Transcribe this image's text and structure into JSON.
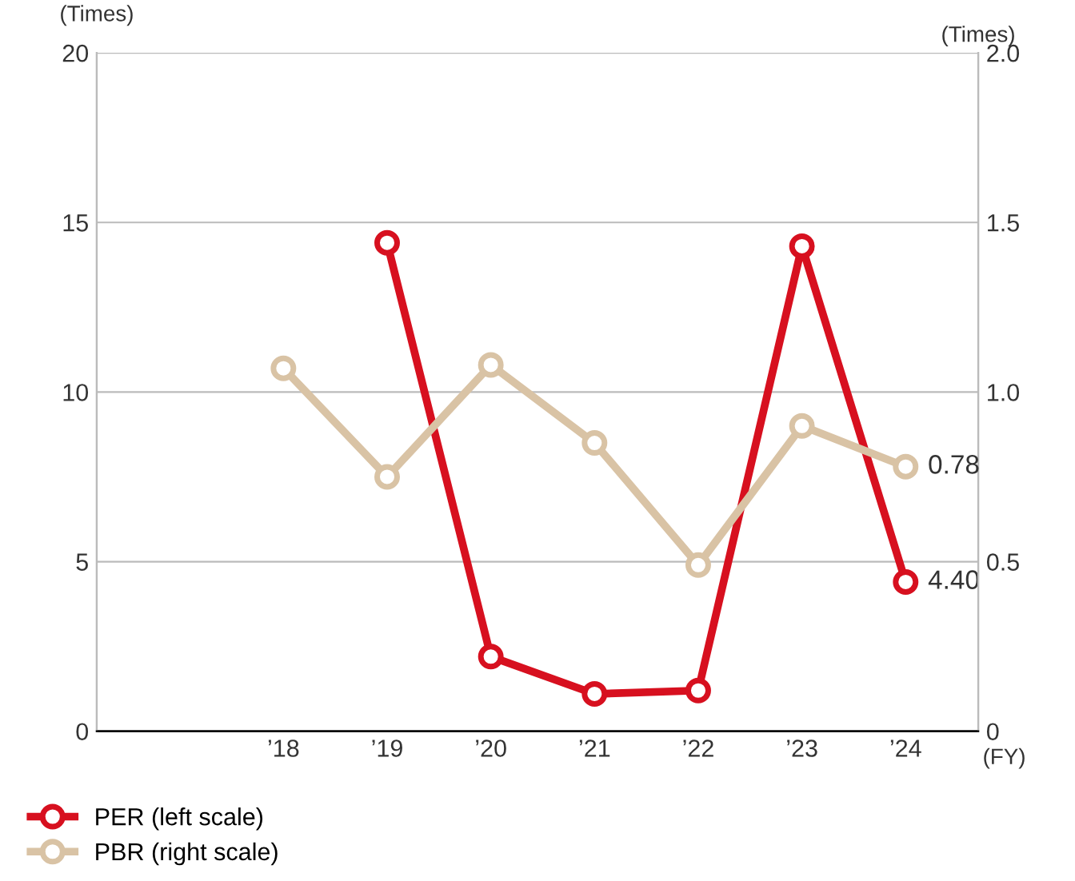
{
  "chart_data": {
    "type": "line",
    "ylabel": "(Times)",
    "y2label": "(Times)",
    "categories": [
      "’18",
      "’19",
      "’20",
      "’21",
      "’22",
      "’23",
      "’24"
    ],
    "series": [
      {
        "name": "PER (left scale)",
        "color": "#d7101f",
        "values": [
          null,
          14.4,
          2.2,
          1.1,
          1.2,
          14.3,
          4.4
        ],
        "value_labels": [
          null,
          null,
          null,
          null,
          null,
          null,
          "4.40"
        ]
      },
      {
        "name": "PBR (right scale)",
        "color": "#d9c3a5",
        "axis": "y2",
        "values": [
          1.07,
          0.75,
          1.08,
          0.85,
          0.49,
          0.9,
          0.78
        ],
        "value_labels": [
          null,
          null,
          null,
          null,
          null,
          null,
          "0.78"
        ]
      }
    ],
    "ylim": [
      0,
      20
    ],
    "yticks": [
      0,
      5,
      10,
      15,
      20
    ],
    "y2lim": [
      0,
      2.0
    ],
    "y2ticks": [
      {
        "value": 0,
        "label": "0"
      },
      {
        "value": 0.5,
        "label": "0.5"
      },
      {
        "value": 1.0,
        "label": "1.0"
      },
      {
        "value": 1.5,
        "label": "1.5"
      },
      {
        "value": 2.0,
        "label": "2.0"
      }
    ],
    "grid": "y",
    "legend": "bottom",
    "marker": "circle",
    "line_style": "solid",
    "annotations": [
      "(FY)"
    ]
  }
}
